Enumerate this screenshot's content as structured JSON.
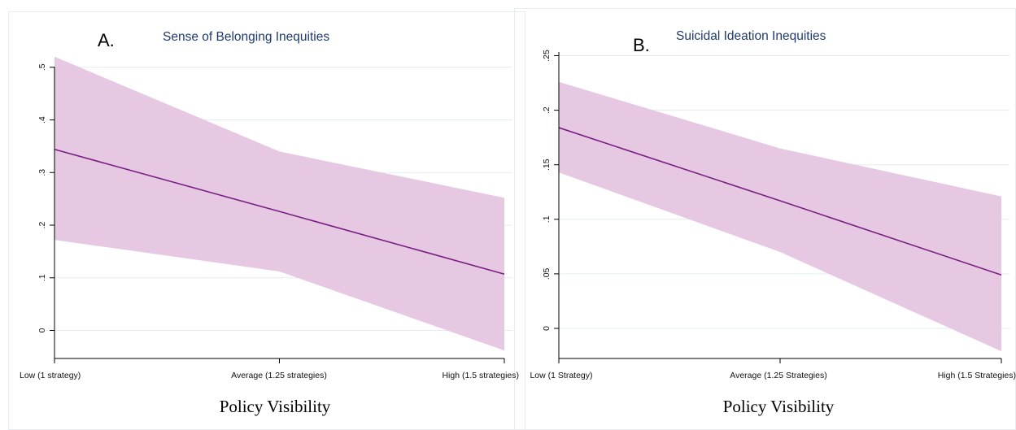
{
  "chart_data": [
    {
      "type": "line",
      "panel_letter": "A.",
      "title": "Sense of Belonging Inequities",
      "xlabel": "Policy Visibility",
      "ylabel": "",
      "x": [
        1,
        1.25,
        1.5
      ],
      "x_tick_labels": [
        "Low (1 strategy)",
        "Average (1.25 strategies)",
        "High (1.5 strategies)"
      ],
      "y_ticks": [
        0,
        0.1,
        0.2,
        0.3,
        0.4,
        0.5
      ],
      "y_tick_labels": [
        "0",
        ".1",
        ".2",
        ".3",
        ".4",
        ".5"
      ],
      "ylim": [
        -0.05,
        0.5
      ],
      "grid": true,
      "series": [
        {
          "values": [
            0.344,
            0.226,
            0.107
          ],
          "ci_lower": [
            0.172,
            0.112,
            -0.038
          ],
          "ci_upper": [
            0.52,
            0.34,
            0.252
          ]
        }
      ],
      "colors": {
        "line": "#7a1f82",
        "band": "#e6c8e2"
      }
    },
    {
      "type": "line",
      "panel_letter": "B.",
      "title": "Suicidal Ideation Inequities",
      "xlabel": "Policy Visibility",
      "ylabel": "",
      "x": [
        1,
        1.25,
        1.5
      ],
      "x_tick_labels": [
        "Low (1 Strategy)",
        "Average (1.25 Strategies)",
        "High (1.5 Strategies)"
      ],
      "y_ticks": [
        0,
        0.05,
        0.1,
        0.15,
        0.2,
        0.25
      ],
      "y_tick_labels": [
        "0",
        ".05",
        ".1",
        ".15",
        ".2",
        ".25"
      ],
      "ylim": [
        -0.03,
        0.25
      ],
      "grid": true,
      "series": [
        {
          "values": [
            0.184,
            0.117,
            0.049
          ],
          "ci_lower": [
            0.143,
            0.07,
            -0.021
          ],
          "ci_upper": [
            0.226,
            0.165,
            0.121
          ]
        }
      ],
      "colors": {
        "line": "#7a1f82",
        "band": "#e6c8e2"
      }
    }
  ]
}
